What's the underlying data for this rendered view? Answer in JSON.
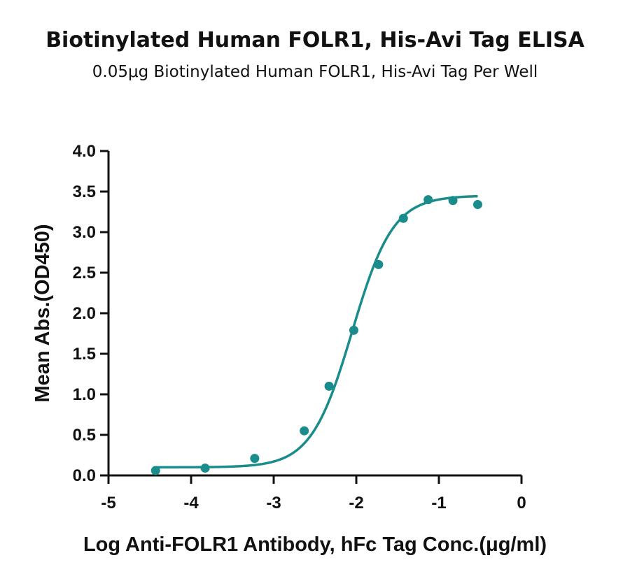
{
  "chart_data": {
    "type": "scatter",
    "title": "Biotinylated Human FOLR1, His-Avi Tag ELISA",
    "subtitle": "0.05μg Biotinylated Human FOLR1, His-Avi Tag Per Well",
    "xlabel": "Log Anti-FOLR1 Antibody, hFc Tag Conc.(μg/ml)",
    "ylabel": "Mean Abs.(OD450)",
    "xlim": [
      -5,
      0
    ],
    "ylim": [
      0,
      4
    ],
    "x_ticks": [
      -5,
      -4,
      -3,
      -2,
      -1,
      0
    ],
    "x_tick_labels": [
      "-5",
      "-4",
      "-3",
      "-2",
      "-1",
      "0"
    ],
    "y_ticks": [
      0,
      0.5,
      1,
      1.5,
      2,
      2.5,
      3,
      3.5,
      4
    ],
    "y_tick_labels": [
      "0.0",
      "0.5",
      "1.0",
      "1.5",
      "2.0",
      "2.5",
      "3.0",
      "3.5",
      "4.0"
    ],
    "color": "#1a8c8c",
    "series": [
      {
        "x": [
          -4.43,
          -3.83,
          -3.23,
          -2.63,
          -2.33,
          -2.03,
          -1.73,
          -1.43,
          -1.13,
          -0.83,
          -0.53
        ],
        "y": [
          0.06,
          0.09,
          0.21,
          0.55,
          1.1,
          1.79,
          2.6,
          3.17,
          3.4,
          3.39,
          3.34
        ]
      }
    ],
    "fit": {
      "x_range": [
        -4.43,
        -0.53
      ],
      "bottom": 0.1,
      "top": 3.45,
      "logEC50": -2.05,
      "hill": 1.75
    }
  }
}
